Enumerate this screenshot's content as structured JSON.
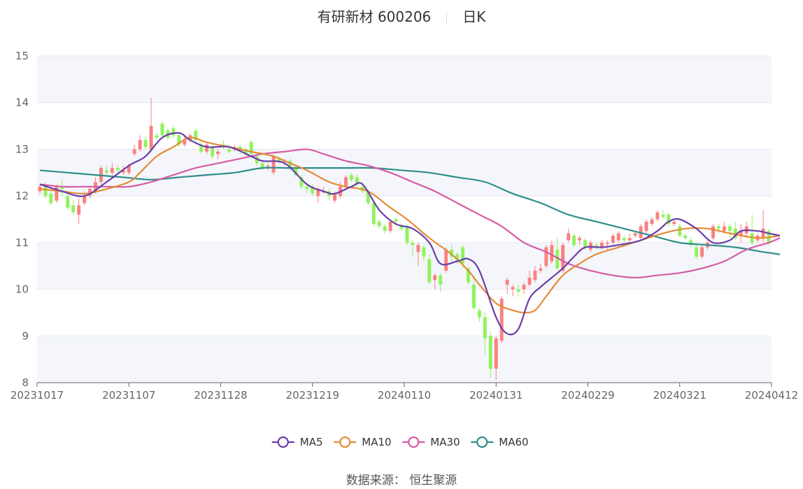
{
  "header": {
    "stock_name": "有研新材",
    "stock_code": "600206",
    "period": "日K"
  },
  "source": {
    "label": "数据来源：",
    "value": "恒生聚源"
  },
  "colors": {
    "up": "#fb8080",
    "down": "#8ff35c",
    "MA5": "#6a3fa8",
    "MA10": "#e38c37",
    "MA30": "#d75ba5",
    "MA60": "#2f8e8a",
    "band": "#f4f6fb",
    "grid": "#e6e8ee"
  },
  "chart_data": {
    "type": "candlestick",
    "ylim": [
      8,
      15
    ],
    "yticks": [
      8,
      9,
      10,
      11,
      12,
      13,
      14,
      15
    ],
    "x_tick_labels": [
      "20231017",
      "20231107",
      "20231128",
      "20231219",
      "20240110",
      "20240131",
      "20240229",
      "20240321",
      "20240412"
    ],
    "legend": [
      "MA5",
      "MA10",
      "MA30",
      "MA60"
    ],
    "legend_position": "bottom-center",
    "candles": [
      [
        12.1,
        12.2,
        12.25,
        12.05
      ],
      [
        12.2,
        12.0,
        12.3,
        11.95
      ],
      [
        12.05,
        11.85,
        12.1,
        11.8
      ],
      [
        11.9,
        12.2,
        12.25,
        11.85
      ],
      [
        12.2,
        12.15,
        12.35,
        12.0
      ],
      [
        12.0,
        11.75,
        12.05,
        11.7
      ],
      [
        11.8,
        11.65,
        11.9,
        11.6
      ],
      [
        11.6,
        11.8,
        11.95,
        11.4
      ],
      [
        11.85,
        12.0,
        12.1,
        11.8
      ],
      [
        12.0,
        12.15,
        12.2,
        11.95
      ],
      [
        12.1,
        12.3,
        12.4,
        12.05
      ],
      [
        12.3,
        12.6,
        12.65,
        12.25
      ],
      [
        12.55,
        12.5,
        12.65,
        12.45
      ],
      [
        12.5,
        12.6,
        12.7,
        12.45
      ],
      [
        12.6,
        12.55,
        12.65,
        12.5
      ],
      [
        12.5,
        12.55,
        12.65,
        12.45
      ],
      [
        12.5,
        12.65,
        12.7,
        12.45
      ],
      [
        12.9,
        13.0,
        13.1,
        12.85
      ],
      [
        13.0,
        13.2,
        13.3,
        12.95
      ],
      [
        13.2,
        13.05,
        13.3,
        13.0
      ],
      [
        13.0,
        13.5,
        14.1,
        12.95
      ],
      [
        13.3,
        13.25,
        13.35,
        13.2
      ],
      [
        13.55,
        13.3,
        13.6,
        13.25
      ],
      [
        13.4,
        13.25,
        13.45,
        13.2
      ],
      [
        13.45,
        13.3,
        13.5,
        13.25
      ],
      [
        13.3,
        13.1,
        13.35,
        13.05
      ],
      [
        13.1,
        13.2,
        13.3,
        13.05
      ],
      [
        13.2,
        13.3,
        13.35,
        13.15
      ],
      [
        13.4,
        13.2,
        13.45,
        13.15
      ],
      [
        13.1,
        12.95,
        13.2,
        12.9
      ],
      [
        12.95,
        13.1,
        13.15,
        12.9
      ],
      [
        13.05,
        12.85,
        13.1,
        12.8
      ],
      [
        12.9,
        12.95,
        13.0,
        12.8
      ],
      [
        13.1,
        13.05,
        13.2,
        13.0
      ],
      [
        13.0,
        12.95,
        13.1,
        12.9
      ],
      [
        13.0,
        13.05,
        13.1,
        12.95
      ],
      [
        13.05,
        13.0,
        13.1,
        12.9
      ],
      [
        13.0,
        12.9,
        13.05,
        12.85
      ],
      [
        13.15,
        12.9,
        13.2,
        12.85
      ],
      [
        12.85,
        12.7,
        12.9,
        12.65
      ],
      [
        12.7,
        12.6,
        12.75,
        12.55
      ],
      [
        12.65,
        12.65,
        12.7,
        12.55
      ],
      [
        12.5,
        12.85,
        12.9,
        12.45
      ],
      [
        12.8,
        12.75,
        12.85,
        12.7
      ],
      [
        12.75,
        12.75,
        12.8,
        12.65
      ],
      [
        12.75,
        12.6,
        12.8,
        12.55
      ],
      [
        12.6,
        12.45,
        12.65,
        12.4
      ],
      [
        12.4,
        12.2,
        12.45,
        12.15
      ],
      [
        12.2,
        12.15,
        12.25,
        12.05
      ],
      [
        12.2,
        12.05,
        12.25,
        12.0
      ],
      [
        12.0,
        12.15,
        12.2,
        11.85
      ],
      [
        12.1,
        12.1,
        12.2,
        12.05
      ],
      [
        12.1,
        12.0,
        12.15,
        11.9
      ],
      [
        11.9,
        12.05,
        12.1,
        11.85
      ],
      [
        12.0,
        12.2,
        12.3,
        11.95
      ],
      [
        12.2,
        12.4,
        12.45,
        12.15
      ],
      [
        12.45,
        12.35,
        12.5,
        12.3
      ],
      [
        12.4,
        12.25,
        12.45,
        12.2
      ],
      [
        12.2,
        12.1,
        12.3,
        12.05
      ],
      [
        12.1,
        11.85,
        12.15,
        11.8
      ],
      [
        11.85,
        11.4,
        11.9,
        11.35
      ],
      [
        11.45,
        11.35,
        11.5,
        11.3
      ],
      [
        11.35,
        11.25,
        11.4,
        11.2
      ],
      [
        11.25,
        11.45,
        11.5,
        11.2
      ],
      [
        11.5,
        11.45,
        11.55,
        11.35
      ],
      [
        11.35,
        11.3,
        11.4,
        11.25
      ],
      [
        11.35,
        11.0,
        11.4,
        10.95
      ],
      [
        11.0,
        10.95,
        11.05,
        10.7
      ],
      [
        10.8,
        10.95,
        11.0,
        10.5
      ],
      [
        10.9,
        10.7,
        10.95,
        10.6
      ],
      [
        10.65,
        10.15,
        10.75,
        10.1
      ],
      [
        10.2,
        10.3,
        10.35,
        10.0
      ],
      [
        10.3,
        10.1,
        10.35,
        9.95
      ],
      [
        10.4,
        10.85,
        10.9,
        10.35
      ],
      [
        10.85,
        10.7,
        10.95,
        10.6
      ],
      [
        10.75,
        10.6,
        10.8,
        10.55
      ],
      [
        10.9,
        10.55,
        10.95,
        10.45
      ],
      [
        10.45,
        10.15,
        10.5,
        10.1
      ],
      [
        10.1,
        9.6,
        10.2,
        9.55
      ],
      [
        9.55,
        9.4,
        9.6,
        9.3
      ],
      [
        9.4,
        8.95,
        9.5,
        8.6
      ],
      [
        9.0,
        8.3,
        9.1,
        8.1
      ],
      [
        8.3,
        8.95,
        9.0,
        8.05
      ],
      [
        8.9,
        9.8,
        9.85,
        8.85
      ],
      [
        10.1,
        10.2,
        10.25,
        9.9
      ],
      [
        10.0,
        10.05,
        10.1,
        9.85
      ],
      [
        10.0,
        9.95,
        10.1,
        9.85
      ],
      [
        10.0,
        10.1,
        10.15,
        9.9
      ],
      [
        10.1,
        10.25,
        10.4,
        10.05
      ],
      [
        10.2,
        10.4,
        10.5,
        10.15
      ],
      [
        10.4,
        10.45,
        10.55,
        10.35
      ],
      [
        10.5,
        10.9,
        10.95,
        10.45
      ],
      [
        10.6,
        10.95,
        11.05,
        10.55
      ],
      [
        10.85,
        10.45,
        11.1,
        10.4
      ],
      [
        10.4,
        10.95,
        11.0,
        10.35
      ],
      [
        11.05,
        11.2,
        11.3,
        11.0
      ],
      [
        11.15,
        10.95,
        11.2,
        10.9
      ],
      [
        11.05,
        11.1,
        11.15,
        10.95
      ],
      [
        11.05,
        10.9,
        11.1,
        10.85
      ],
      [
        10.85,
        11.0,
        11.05,
        10.8
      ],
      [
        10.95,
        10.9,
        11.0,
        10.85
      ],
      [
        10.9,
        11.0,
        11.05,
        10.85
      ],
      [
        11.0,
        11.0,
        11.05,
        10.85
      ],
      [
        11.0,
        11.15,
        11.2,
        10.95
      ],
      [
        11.05,
        11.2,
        11.25,
        11.0
      ],
      [
        11.1,
        11.05,
        11.15,
        11.0
      ],
      [
        11.05,
        11.1,
        11.2,
        11.0
      ],
      [
        11.15,
        11.2,
        11.25,
        11.1
      ],
      [
        11.1,
        11.35,
        11.4,
        11.05
      ],
      [
        11.25,
        11.45,
        11.5,
        11.2
      ],
      [
        11.4,
        11.5,
        11.55,
        11.35
      ],
      [
        11.5,
        11.65,
        11.7,
        11.45
      ],
      [
        11.6,
        11.55,
        11.7,
        11.5
      ],
      [
        11.6,
        11.4,
        11.65,
        11.35
      ],
      [
        11.4,
        11.45,
        11.5,
        11.35
      ],
      [
        11.35,
        11.15,
        11.4,
        11.1
      ],
      [
        11.15,
        11.1,
        11.2,
        11.05
      ],
      [
        11.05,
        10.95,
        11.1,
        10.9
      ],
      [
        10.9,
        10.7,
        11.0,
        10.65
      ],
      [
        10.7,
        10.9,
        10.95,
        10.65
      ],
      [
        10.9,
        11.0,
        11.05,
        10.85
      ],
      [
        11.1,
        11.35,
        11.4,
        11.05
      ],
      [
        11.35,
        11.3,
        11.4,
        11.2
      ],
      [
        11.25,
        11.35,
        11.45,
        11.2
      ],
      [
        11.35,
        11.25,
        11.4,
        11.1
      ],
      [
        11.3,
        11.1,
        11.45,
        11.05
      ],
      [
        11.15,
        11.25,
        11.4,
        11.0
      ],
      [
        11.2,
        11.35,
        11.45,
        11.1
      ],
      [
        11.2,
        11.0,
        11.6,
        10.95
      ],
      [
        11.05,
        11.15,
        11.2,
        11.0
      ],
      [
        11.1,
        11.3,
        11.7,
        11.0
      ],
      [
        11.25,
        11.0,
        11.3,
        10.95
      ]
    ],
    "ma": {
      "MA5": [
        [
          0,
          12.25
        ],
        [
          4,
          12.1
        ],
        [
          8,
          12.0
        ],
        [
          12,
          12.3
        ],
        [
          16,
          12.65
        ],
        [
          19,
          12.85
        ],
        [
          22,
          13.25
        ],
        [
          25,
          13.35
        ],
        [
          27,
          13.2
        ],
        [
          30,
          13.05
        ],
        [
          34,
          13.05
        ],
        [
          38,
          12.85
        ],
        [
          40,
          12.75
        ],
        [
          44,
          12.7
        ],
        [
          48,
          12.25
        ],
        [
          51,
          12.1
        ],
        [
          53,
          12.05
        ],
        [
          56,
          12.2
        ],
        [
          58,
          12.25
        ],
        [
          61,
          11.7
        ],
        [
          64,
          11.4
        ],
        [
          67,
          11.3
        ],
        [
          70,
          11.0
        ],
        [
          72,
          10.55
        ],
        [
          75,
          10.6
        ],
        [
          77,
          10.65
        ],
        [
          79,
          10.4
        ],
        [
          82,
          9.4
        ],
        [
          84,
          9.05
        ],
        [
          86,
          9.15
        ],
        [
          88,
          9.8
        ],
        [
          90,
          10.05
        ],
        [
          92,
          10.25
        ],
        [
          94,
          10.45
        ],
        [
          96,
          10.7
        ],
        [
          98,
          10.9
        ],
        [
          101,
          10.9
        ],
        [
          104,
          10.95
        ],
        [
          108,
          11.05
        ],
        [
          111,
          11.25
        ],
        [
          113,
          11.45
        ],
        [
          115,
          11.5
        ],
        [
          118,
          11.3
        ],
        [
          121,
          11.0
        ],
        [
          124,
          11.05
        ],
        [
          126,
          11.25
        ],
        [
          129,
          11.25
        ],
        [
          131,
          11.2
        ],
        [
          133,
          11.15
        ]
      ],
      "MA10": [
        [
          0,
          12.15
        ],
        [
          4,
          12.1
        ],
        [
          8,
          12.05
        ],
        [
          12,
          12.15
        ],
        [
          16,
          12.3
        ],
        [
          18,
          12.5
        ],
        [
          21,
          12.85
        ],
        [
          24,
          13.05
        ],
        [
          27,
          13.25
        ],
        [
          30,
          13.15
        ],
        [
          34,
          13.05
        ],
        [
          38,
          12.95
        ],
        [
          42,
          12.85
        ],
        [
          45,
          12.7
        ],
        [
          48,
          12.55
        ],
        [
          52,
          12.3
        ],
        [
          55,
          12.2
        ],
        [
          59,
          12.1
        ],
        [
          63,
          11.75
        ],
        [
          66,
          11.5
        ],
        [
          70,
          11.1
        ],
        [
          74,
          10.75
        ],
        [
          77,
          10.4
        ],
        [
          79,
          10.1
        ],
        [
          82,
          9.7
        ],
        [
          85,
          9.55
        ],
        [
          87,
          9.5
        ],
        [
          89,
          9.55
        ],
        [
          91,
          9.85
        ],
        [
          94,
          10.3
        ],
        [
          97,
          10.55
        ],
        [
          100,
          10.75
        ],
        [
          104,
          10.9
        ],
        [
          108,
          11.05
        ],
        [
          112,
          11.2
        ],
        [
          116,
          11.3
        ],
        [
          120,
          11.3
        ],
        [
          124,
          11.2
        ],
        [
          129,
          11.1
        ],
        [
          133,
          11.15
        ]
      ],
      "MA30": [
        [
          0,
          12.25
        ],
        [
          4,
          12.2
        ],
        [
          8,
          12.2
        ],
        [
          12,
          12.2
        ],
        [
          16,
          12.2
        ],
        [
          20,
          12.3
        ],
        [
          24,
          12.45
        ],
        [
          28,
          12.6
        ],
        [
          32,
          12.7
        ],
        [
          36,
          12.8
        ],
        [
          40,
          12.9
        ],
        [
          44,
          12.95
        ],
        [
          48,
          13.0
        ],
        [
          51,
          12.9
        ],
        [
          55,
          12.75
        ],
        [
          59,
          12.65
        ],
        [
          63,
          12.5
        ],
        [
          67,
          12.3
        ],
        [
          71,
          12.1
        ],
        [
          75,
          11.85
        ],
        [
          79,
          11.6
        ],
        [
          83,
          11.35
        ],
        [
          87,
          11.0
        ],
        [
          91,
          10.8
        ],
        [
          95,
          10.55
        ],
        [
          99,
          10.4
        ],
        [
          103,
          10.3
        ],
        [
          107,
          10.25
        ],
        [
          111,
          10.3
        ],
        [
          115,
          10.35
        ],
        [
          119,
          10.45
        ],
        [
          123,
          10.6
        ],
        [
          127,
          10.85
        ],
        [
          131,
          11.0
        ],
        [
          133,
          11.1
        ]
      ],
      "MA60": [
        [
          0,
          12.55
        ],
        [
          5,
          12.5
        ],
        [
          10,
          12.45
        ],
        [
          15,
          12.4
        ],
        [
          20,
          12.35
        ],
        [
          25,
          12.4
        ],
        [
          30,
          12.45
        ],
        [
          35,
          12.5
        ],
        [
          40,
          12.6
        ],
        [
          45,
          12.6
        ],
        [
          50,
          12.6
        ],
        [
          55,
          12.6
        ],
        [
          60,
          12.6
        ],
        [
          65,
          12.55
        ],
        [
          70,
          12.5
        ],
        [
          75,
          12.4
        ],
        [
          80,
          12.3
        ],
        [
          85,
          12.05
        ],
        [
          90,
          11.85
        ],
        [
          95,
          11.6
        ],
        [
          100,
          11.45
        ],
        [
          105,
          11.3
        ],
        [
          110,
          11.15
        ],
        [
          115,
          11.0
        ],
        [
          120,
          10.95
        ],
        [
          125,
          10.9
        ],
        [
          130,
          10.8
        ],
        [
          133,
          10.75
        ]
      ]
    }
  }
}
